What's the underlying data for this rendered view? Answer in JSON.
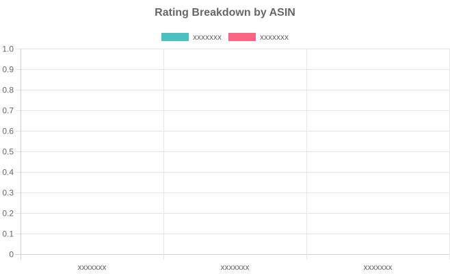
{
  "chart_data": {
    "type": "bar",
    "title": "Rating Breakdown by ASIN",
    "xlabel": "",
    "ylabel": "",
    "categories": [
      "xxxxxxx",
      "xxxxxxx",
      "xxxxxxx"
    ],
    "series": [
      {
        "name": "xxxxxxx",
        "color": "#4bc0c0",
        "values": [
          0,
          0,
          0
        ]
      },
      {
        "name": "xxxxxxx",
        "color": "#ff6384",
        "values": [
          0,
          0,
          0
        ]
      }
    ],
    "ylim": [
      0,
      1.0
    ],
    "yticks": [
      "0",
      "0.1",
      "0.2",
      "0.3",
      "0.4",
      "0.5",
      "0.6",
      "0.7",
      "0.8",
      "0.9",
      "1.0"
    ],
    "grid": true,
    "legend_position": "top"
  }
}
